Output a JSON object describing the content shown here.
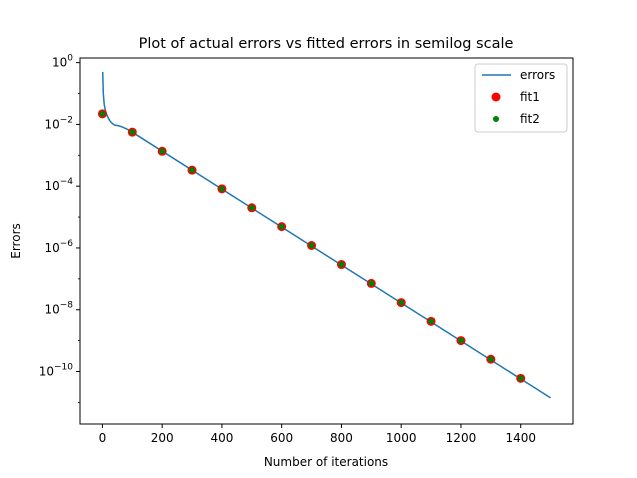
{
  "chart_data": {
    "type": "line",
    "title": "Plot of actual errors vs fitted errors in semilog scale",
    "xlabel": "Number of iterations",
    "ylabel": "Errors",
    "xlim": [
      -75,
      1575
    ],
    "ylim_log10": [
      -11.7,
      0.15
    ],
    "y_scale": "log",
    "x_ticks": [
      0,
      200,
      400,
      600,
      800,
      1000,
      1200,
      1400
    ],
    "x_tick_labels": [
      "0",
      "200",
      "400",
      "600",
      "800",
      "1000",
      "1200",
      "1400"
    ],
    "y_tick_exponents": [
      0,
      -2,
      -4,
      -6,
      -8,
      -10
    ],
    "y_tick_labels": [
      "10",
      "10",
      "10",
      "10",
      "10",
      "10"
    ],
    "y_tick_superscripts": [
      "0",
      "−2",
      "−4",
      "−6",
      "−8",
      "−10"
    ],
    "grid": false,
    "legend_position": "top-right",
    "series": [
      {
        "name": "errors",
        "kind": "line",
        "color": "#1f77b4",
        "x": [
          1,
          3,
          6,
          10,
          15,
          20,
          25,
          30,
          40,
          50,
          60,
          70,
          80,
          90,
          100,
          1500
        ],
        "y": [
          0.5,
          0.1,
          0.045,
          0.028,
          0.02,
          0.016,
          0.013,
          0.0115,
          0.0095,
          0.0092,
          0.0087,
          0.008,
          0.0072,
          0.0064,
          0.0056,
          1.4e-11
        ]
      },
      {
        "name": "fit1",
        "kind": "scatter",
        "color": "#ff0000",
        "x": [
          0,
          100,
          200,
          300,
          400,
          500,
          600,
          700,
          800,
          900,
          1000,
          1100,
          1200,
          1300,
          1400
        ],
        "y": [
          0.022,
          0.0056,
          0.00135,
          0.00033,
          8.2e-05,
          2e-05,
          4.9e-06,
          1.2e-06,
          2.9e-07,
          7.1e-08,
          1.7e-08,
          4.2e-09,
          1e-09,
          2.5e-10,
          6e-11
        ]
      },
      {
        "name": "fit2",
        "kind": "scatter",
        "color": "#008000",
        "x": [
          0,
          100,
          200,
          300,
          400,
          500,
          600,
          700,
          800,
          900,
          1000,
          1100,
          1200,
          1300,
          1400
        ],
        "y": [
          0.022,
          0.0056,
          0.00135,
          0.00033,
          8.2e-05,
          2e-05,
          4.9e-06,
          1.2e-06,
          2.9e-07,
          7.1e-08,
          1.7e-08,
          4.2e-09,
          1e-09,
          2.5e-10,
          6e-11
        ]
      }
    ]
  }
}
